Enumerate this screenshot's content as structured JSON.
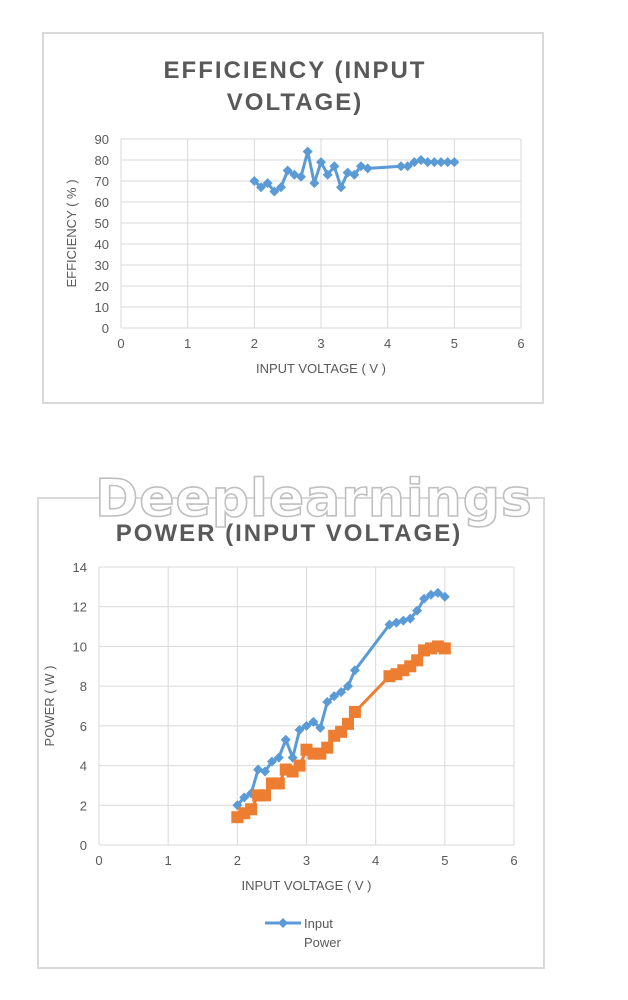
{
  "watermark": "Deeplearnings",
  "chart_data": [
    {
      "type": "line",
      "title_lines": [
        "EFFICIENCY (INPUT",
        "VOLTAGE)"
      ],
      "xlabel": "INPUT VOLTAGE ( V )",
      "ylabel": "EFFICIENCY ( % )",
      "xlim": [
        0,
        6
      ],
      "ylim": [
        0,
        90
      ],
      "x_ticks": [
        0,
        1,
        2,
        3,
        4,
        5,
        6
      ],
      "y_ticks": [
        0,
        10,
        20,
        30,
        40,
        50,
        60,
        70,
        80,
        90
      ],
      "grid": true,
      "series": [
        {
          "color": "#5b9bd5",
          "marker": "diamond",
          "points": [
            [
              2.0,
              70
            ],
            [
              2.1,
              67
            ],
            [
              2.2,
              69
            ],
            [
              2.3,
              65
            ],
            [
              2.4,
              67
            ],
            [
              2.5,
              75
            ],
            [
              2.6,
              73
            ],
            [
              2.7,
              72
            ],
            [
              2.8,
              84
            ],
            [
              2.9,
              69
            ],
            [
              3.0,
              79
            ],
            [
              3.1,
              73
            ],
            [
              3.2,
              77
            ],
            [
              3.3,
              67
            ],
            [
              3.4,
              74
            ],
            [
              3.5,
              73
            ],
            [
              3.6,
              77
            ],
            [
              3.7,
              76
            ],
            [
              4.2,
              77
            ],
            [
              4.3,
              77
            ],
            [
              4.4,
              79
            ],
            [
              4.5,
              80
            ],
            [
              4.6,
              79
            ],
            [
              4.7,
              79
            ],
            [
              4.8,
              79
            ],
            [
              4.9,
              79
            ],
            [
              5.0,
              79
            ]
          ]
        }
      ]
    },
    {
      "type": "line",
      "title_lines": [
        "POWER (INPUT VOLTAGE)"
      ],
      "xlabel": "INPUT VOLTAGE ( V )",
      "ylabel": "POWER ( W )",
      "xlim": [
        0,
        6
      ],
      "ylim": [
        0,
        14
      ],
      "x_ticks": [
        0,
        1,
        2,
        3,
        4,
        5,
        6
      ],
      "y_ticks": [
        0,
        2,
        4,
        6,
        8,
        10,
        12,
        14
      ],
      "grid": true,
      "legend_position": "bottom",
      "series": [
        {
          "name": "Input",
          "color": "#5b9bd5",
          "marker": "diamond",
          "points": [
            [
              2.0,
              2.0
            ],
            [
              2.1,
              2.4
            ],
            [
              2.2,
              2.6
            ],
            [
              2.3,
              3.8
            ],
            [
              2.4,
              3.7
            ],
            [
              2.5,
              4.2
            ],
            [
              2.6,
              4.4
            ],
            [
              2.7,
              5.3
            ],
            [
              2.8,
              4.4
            ],
            [
              2.9,
              5.8
            ],
            [
              3.0,
              6.0
            ],
            [
              3.1,
              6.2
            ],
            [
              3.2,
              5.9
            ],
            [
              3.3,
              7.2
            ],
            [
              3.4,
              7.5
            ],
            [
              3.5,
              7.7
            ],
            [
              3.6,
              8.0
            ],
            [
              3.7,
              8.8
            ],
            [
              4.2,
              11.1
            ],
            [
              4.3,
              11.2
            ],
            [
              4.4,
              11.3
            ],
            [
              4.5,
              11.4
            ],
            [
              4.6,
              11.8
            ],
            [
              4.7,
              12.4
            ],
            [
              4.8,
              12.6
            ],
            [
              4.9,
              12.7
            ],
            [
              5.0,
              12.5
            ]
          ]
        },
        {
          "name": "Power",
          "color": "#ed7d31",
          "marker": "square",
          "points": [
            [
              2.0,
              1.4
            ],
            [
              2.1,
              1.6
            ],
            [
              2.2,
              1.8
            ],
            [
              2.3,
              2.5
            ],
            [
              2.4,
              2.5
            ],
            [
              2.5,
              3.1
            ],
            [
              2.6,
              3.1
            ],
            [
              2.7,
              3.8
            ],
            [
              2.8,
              3.7
            ],
            [
              2.9,
              4.0
            ],
            [
              3.0,
              4.8
            ],
            [
              3.1,
              4.6
            ],
            [
              3.2,
              4.6
            ],
            [
              3.3,
              4.9
            ],
            [
              3.4,
              5.5
            ],
            [
              3.5,
              5.7
            ],
            [
              3.6,
              6.1
            ],
            [
              3.7,
              6.7
            ],
            [
              4.2,
              8.5
            ],
            [
              4.3,
              8.6
            ],
            [
              4.4,
              8.8
            ],
            [
              4.5,
              9.0
            ],
            [
              4.6,
              9.3
            ],
            [
              4.7,
              9.8
            ],
            [
              4.8,
              9.9
            ],
            [
              4.9,
              10.0
            ],
            [
              5.0,
              9.9
            ]
          ]
        }
      ]
    }
  ]
}
